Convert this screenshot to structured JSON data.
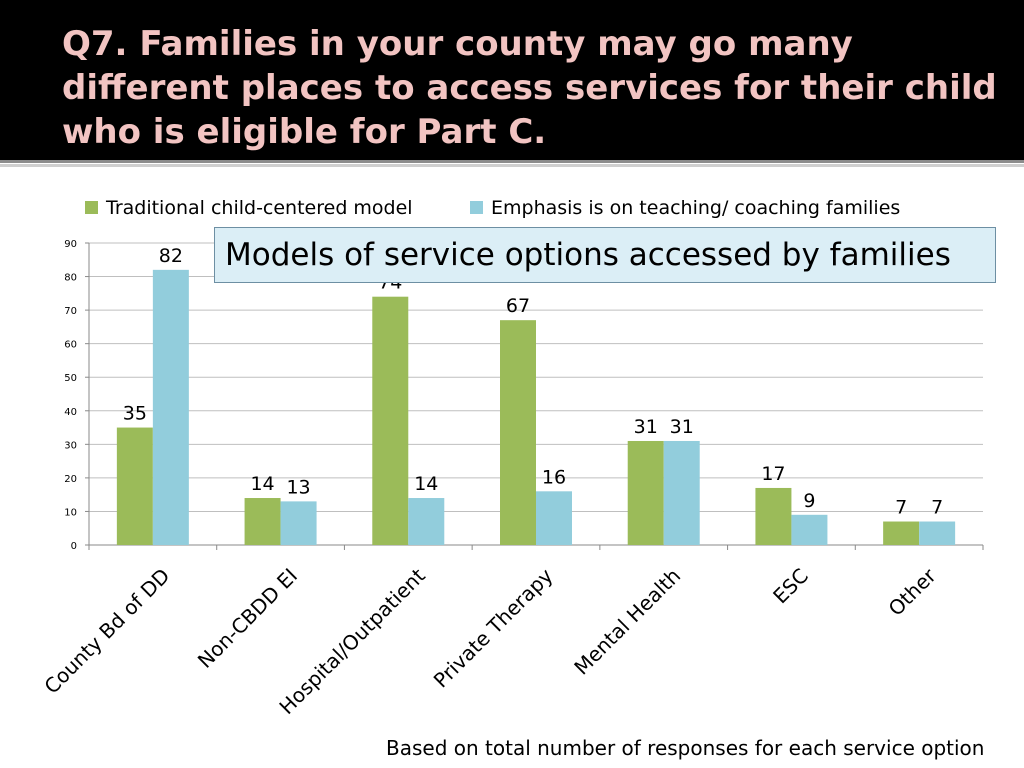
{
  "slide": {
    "title": "Q7. Families in your county may go many different places to access services for their child who is eligible for Part C.",
    "callout": "Models of service options accessed by families",
    "footnote": "Based on total number of responses for each service option"
  },
  "colors": {
    "title_bg": "#000000",
    "title_text": "#f2c4c2",
    "series_green": "#9bbb59",
    "series_blue": "#92cddc",
    "callout_bg": "#dbeef6"
  },
  "chart_data": {
    "type": "bar",
    "categories": [
      "County Bd of DD",
      "Non-CBDD EI",
      "Hospital/Outpatient",
      "Private Therapy",
      "Mental Health",
      "ESC",
      "Other"
    ],
    "series": [
      {
        "name": "Traditional child-centered model",
        "values": [
          35,
          14,
          74,
          67,
          31,
          17,
          7
        ]
      },
      {
        "name": "Emphasis is on teaching/ coaching families",
        "values": [
          82,
          13,
          14,
          16,
          31,
          9,
          7
        ]
      }
    ],
    "data_labels": [
      [
        "35",
        "14",
        "74",
        "67",
        "31",
        "17",
        "7"
      ],
      [
        "82",
        "13",
        "14",
        "16",
        "31",
        "9",
        "7"
      ]
    ],
    "ylim": [
      0,
      90
    ],
    "yticks": [
      "0",
      "10",
      "20",
      "30",
      "40",
      "50",
      "60",
      "70",
      "80",
      "90"
    ],
    "grid": true,
    "legend_position": "top"
  }
}
